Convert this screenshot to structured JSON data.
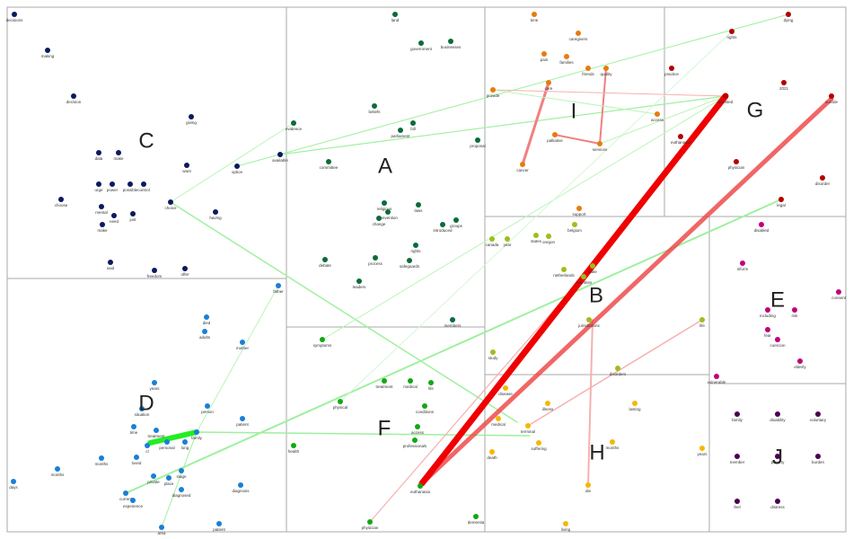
{
  "clusters": [
    {
      "letter": "A",
      "color": "#0b6b3a",
      "nodes": [
        "land",
        "government",
        "businesses",
        "beliefs",
        "bill",
        "parliament",
        "evidence",
        "proposal",
        "committee",
        "religious",
        "laws",
        "convention",
        "change",
        "introduced",
        "groups",
        "rights",
        "safeguards",
        "process",
        "debate",
        "leaders",
        "members"
      ]
    },
    {
      "letter": "B",
      "color": "#9bbf1a",
      "nodes": [
        "canada",
        "year",
        "states",
        "oregon",
        "belgium",
        "netherlands",
        "countries",
        "state",
        "jurisdictions",
        "life",
        "study",
        "disorders"
      ]
    },
    {
      "letter": "C",
      "color": "#0b1a5c",
      "nodes": [
        "decisions",
        "making",
        "decision",
        "giving",
        "data",
        "make",
        "want",
        "option",
        "available",
        "choice",
        "having",
        "choose",
        "mental",
        "need",
        "make",
        "just",
        "said",
        "freedom",
        "offer",
        "urge",
        "power",
        "possible",
        "control"
      ]
    },
    {
      "letter": "D",
      "color": "#1a7fd6",
      "nodes": [
        "father",
        "died",
        "adults",
        "mother",
        "years",
        "situation",
        "person",
        "patient",
        "time",
        "treatment",
        "cl",
        "personal",
        "family",
        "long",
        "days",
        "months",
        "months",
        "loved",
        "private",
        "stage",
        "place",
        "current",
        "experience",
        "diagnosed",
        "diagnosis",
        "area",
        "patient"
      ]
    },
    {
      "letter": "E",
      "color": "#c0007a",
      "nodes": [
        "disabled",
        "inform",
        "consent",
        "including",
        "risk",
        "fear",
        "coercion",
        "elderly",
        "vulnerable"
      ]
    },
    {
      "letter": "F",
      "color": "#12a812",
      "nodes": [
        "symptoms",
        "treatment",
        "medical",
        "life",
        "conditions",
        "physical",
        "access",
        "professionals",
        "health",
        "euthanasia",
        "dementia",
        "physician"
      ]
    },
    {
      "letter": "G",
      "color": "#b30000",
      "nodes": [
        "dying",
        "rights",
        "practice",
        "2021",
        "assisted",
        "suicide",
        "euthanasia",
        "physician",
        "disorder",
        "legal"
      ]
    },
    {
      "letter": "H",
      "color": "#f5b800",
      "nodes": [
        "disease",
        "illness",
        "medical",
        "terminal",
        "suffering",
        "death",
        "lasting",
        "months",
        "years",
        "die",
        "living"
      ]
    },
    {
      "letter": "I",
      "color": "#e87b0f",
      "nodes": [
        "time",
        "caregivers",
        "pain",
        "families",
        "friends",
        "quality",
        "care",
        "provide",
        "access",
        "palliative",
        "services",
        "cancer",
        "support"
      ]
    },
    {
      "letter": "J",
      "color": "#4a0050",
      "nodes": [
        "family",
        "disability",
        "voluntary",
        "member",
        "poverty",
        "burden",
        "feel",
        "distress"
      ]
    }
  ]
}
